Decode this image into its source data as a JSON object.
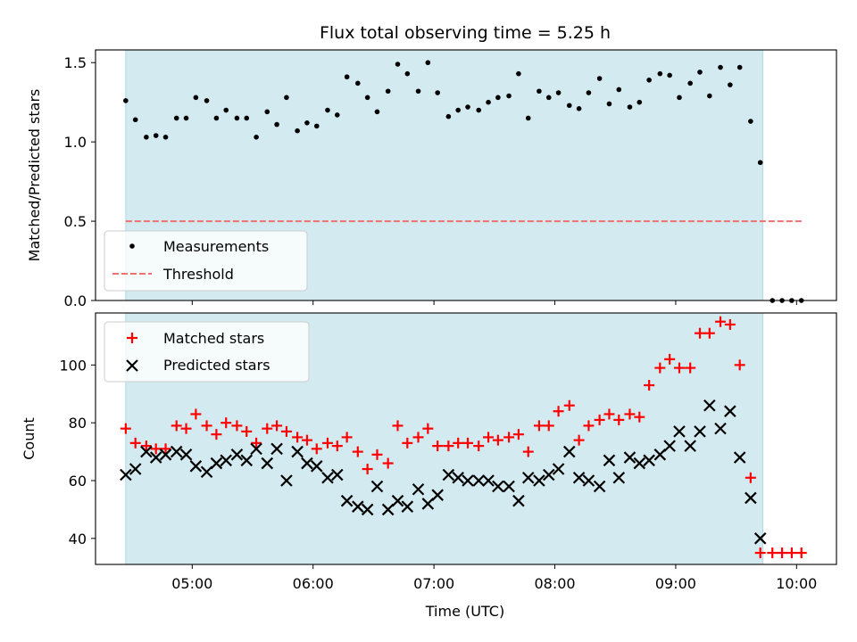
{
  "chart_data": [
    {
      "type": "scatter",
      "title": "Flux total observing time = 5.25 h",
      "xlabel": "",
      "ylabel": "Matched/Predicted stars",
      "ylim": [
        0,
        1.58
      ],
      "yticks": [
        "0.0",
        "0.5",
        "1.0",
        "1.5"
      ],
      "ytick_values": [
        0,
        0.5,
        1.0,
        1.5
      ],
      "observing_window_hours": [
        4.45,
        9.72
      ],
      "legend": {
        "position": "lower-left",
        "entries": [
          "Measurements",
          "Threshold"
        ]
      },
      "threshold": {
        "name": "Threshold",
        "value": 0.5,
        "x_range": [
          4.45,
          10.05
        ],
        "color": "#f07070"
      },
      "series": [
        {
          "name": "Measurements",
          "color": "#000000",
          "points": [
            [
              4.45,
              1.26
            ],
            [
              4.53,
              1.14
            ],
            [
              4.62,
              1.03
            ],
            [
              4.7,
              1.04
            ],
            [
              4.78,
              1.03
            ],
            [
              4.87,
              1.15
            ],
            [
              4.95,
              1.15
            ],
            [
              5.03,
              1.28
            ],
            [
              5.12,
              1.26
            ],
            [
              5.2,
              1.15
            ],
            [
              5.28,
              1.2
            ],
            [
              5.37,
              1.15
            ],
            [
              5.45,
              1.15
            ],
            [
              5.53,
              1.03
            ],
            [
              5.62,
              1.19
            ],
            [
              5.7,
              1.11
            ],
            [
              5.78,
              1.28
            ],
            [
              5.87,
              1.07
            ],
            [
              5.95,
              1.12
            ],
            [
              6.03,
              1.1
            ],
            [
              6.12,
              1.2
            ],
            [
              6.2,
              1.17
            ],
            [
              6.28,
              1.41
            ],
            [
              6.37,
              1.37
            ],
            [
              6.45,
              1.28
            ],
            [
              6.53,
              1.19
            ],
            [
              6.62,
              1.32
            ],
            [
              6.7,
              1.49
            ],
            [
              6.78,
              1.43
            ],
            [
              6.87,
              1.32
            ],
            [
              6.95,
              1.5
            ],
            [
              7.03,
              1.31
            ],
            [
              7.12,
              1.16
            ],
            [
              7.2,
              1.2
            ],
            [
              7.28,
              1.22
            ],
            [
              7.37,
              1.2
            ],
            [
              7.45,
              1.25
            ],
            [
              7.53,
              1.28
            ],
            [
              7.62,
              1.29
            ],
            [
              7.7,
              1.43
            ],
            [
              7.78,
              1.15
            ],
            [
              7.87,
              1.32
            ],
            [
              7.95,
              1.28
            ],
            [
              8.03,
              1.31
            ],
            [
              8.12,
              1.23
            ],
            [
              8.2,
              1.21
            ],
            [
              8.28,
              1.31
            ],
            [
              8.37,
              1.4
            ],
            [
              8.45,
              1.24
            ],
            [
              8.53,
              1.33
            ],
            [
              8.62,
              1.22
            ],
            [
              8.7,
              1.25
            ],
            [
              8.78,
              1.39
            ],
            [
              8.87,
              1.43
            ],
            [
              8.95,
              1.42
            ],
            [
              9.03,
              1.28
            ],
            [
              9.12,
              1.37
            ],
            [
              9.2,
              1.44
            ],
            [
              9.28,
              1.29
            ],
            [
              9.37,
              1.47
            ],
            [
              9.45,
              1.36
            ],
            [
              9.53,
              1.47
            ],
            [
              9.62,
              1.13
            ],
            [
              9.7,
              0.87
            ],
            [
              9.8,
              0.0
            ],
            [
              9.88,
              0.0
            ],
            [
              9.96,
              0.0
            ],
            [
              10.04,
              0.0
            ]
          ]
        }
      ]
    },
    {
      "type": "scatter",
      "title": "",
      "xlabel": "Time (UTC)",
      "ylabel": "Count",
      "ylim": [
        31,
        118
      ],
      "xlim": [
        4.2,
        10.33
      ],
      "yticks": [
        "40",
        "60",
        "80",
        "100"
      ],
      "ytick_values": [
        40,
        60,
        80,
        100
      ],
      "xticks": [
        "05:00",
        "06:00",
        "07:00",
        "08:00",
        "09:00",
        "10:00"
      ],
      "xtick_values": [
        5,
        6,
        7,
        8,
        9,
        10
      ],
      "observing_window_hours": [
        4.45,
        9.72
      ],
      "legend": {
        "position": "top-left",
        "entries": [
          "Matched stars",
          "Predicted stars"
        ]
      },
      "series": [
        {
          "name": "Matched stars",
          "marker": "plus",
          "color": "#ff0000",
          "points": [
            [
              4.45,
              78
            ],
            [
              4.53,
              73
            ],
            [
              4.62,
              72
            ],
            [
              4.7,
              71
            ],
            [
              4.78,
              71
            ],
            [
              4.87,
              79
            ],
            [
              4.95,
              78
            ],
            [
              5.03,
              83
            ],
            [
              5.12,
              79
            ],
            [
              5.2,
              76
            ],
            [
              5.28,
              80
            ],
            [
              5.37,
              79
            ],
            [
              5.45,
              77
            ],
            [
              5.53,
              73
            ],
            [
              5.62,
              78
            ],
            [
              5.7,
              79
            ],
            [
              5.78,
              77
            ],
            [
              5.87,
              75
            ],
            [
              5.95,
              74
            ],
            [
              6.03,
              71
            ],
            [
              6.12,
              73
            ],
            [
              6.2,
              72
            ],
            [
              6.28,
              75
            ],
            [
              6.37,
              70
            ],
            [
              6.45,
              64
            ],
            [
              6.53,
              69
            ],
            [
              6.62,
              66
            ],
            [
              6.7,
              79
            ],
            [
              6.78,
              73
            ],
            [
              6.87,
              75
            ],
            [
              6.95,
              78
            ],
            [
              7.03,
              72
            ],
            [
              7.12,
              72
            ],
            [
              7.2,
              73
            ],
            [
              7.28,
              73
            ],
            [
              7.37,
              72
            ],
            [
              7.45,
              75
            ],
            [
              7.53,
              74
            ],
            [
              7.62,
              75
            ],
            [
              7.7,
              76
            ],
            [
              7.78,
              70
            ],
            [
              7.87,
              79
            ],
            [
              7.95,
              79
            ],
            [
              8.03,
              84
            ],
            [
              8.12,
              86
            ],
            [
              8.2,
              74
            ],
            [
              8.28,
              79
            ],
            [
              8.37,
              81
            ],
            [
              8.45,
              83
            ],
            [
              8.53,
              81
            ],
            [
              8.62,
              83
            ],
            [
              8.7,
              82
            ],
            [
              8.78,
              93
            ],
            [
              8.87,
              99
            ],
            [
              8.95,
              102
            ],
            [
              9.03,
              99
            ],
            [
              9.12,
              99
            ],
            [
              9.2,
              111
            ],
            [
              9.28,
              111
            ],
            [
              9.37,
              115
            ],
            [
              9.45,
              114
            ],
            [
              9.53,
              100
            ],
            [
              9.62,
              61
            ],
            [
              9.7,
              35
            ],
            [
              9.8,
              35
            ],
            [
              9.88,
              35
            ],
            [
              9.96,
              35
            ],
            [
              10.04,
              35
            ]
          ]
        },
        {
          "name": "Predicted stars",
          "marker": "x",
          "color": "#000000",
          "points": [
            [
              4.45,
              62
            ],
            [
              4.53,
              64
            ],
            [
              4.62,
              70
            ],
            [
              4.7,
              68
            ],
            [
              4.78,
              69
            ],
            [
              4.87,
              70
            ],
            [
              4.95,
              69
            ],
            [
              5.03,
              65
            ],
            [
              5.12,
              63
            ],
            [
              5.2,
              66
            ],
            [
              5.28,
              67
            ],
            [
              5.37,
              69
            ],
            [
              5.45,
              67
            ],
            [
              5.53,
              71
            ],
            [
              5.62,
              66
            ],
            [
              5.7,
              71
            ],
            [
              5.78,
              60
            ],
            [
              5.87,
              70
            ],
            [
              5.95,
              66
            ],
            [
              6.03,
              65
            ],
            [
              6.12,
              61
            ],
            [
              6.2,
              62
            ],
            [
              6.28,
              53
            ],
            [
              6.37,
              51
            ],
            [
              6.45,
              50
            ],
            [
              6.53,
              58
            ],
            [
              6.62,
              50
            ],
            [
              6.7,
              53
            ],
            [
              6.78,
              51
            ],
            [
              6.87,
              57
            ],
            [
              6.95,
              52
            ],
            [
              7.03,
              55
            ],
            [
              7.12,
              62
            ],
            [
              7.2,
              61
            ],
            [
              7.28,
              60
            ],
            [
              7.37,
              60
            ],
            [
              7.45,
              60
            ],
            [
              7.53,
              58
            ],
            [
              7.62,
              58
            ],
            [
              7.7,
              53
            ],
            [
              7.78,
              61
            ],
            [
              7.87,
              60
            ],
            [
              7.95,
              62
            ],
            [
              8.03,
              64
            ],
            [
              8.12,
              70
            ],
            [
              8.2,
              61
            ],
            [
              8.28,
              60
            ],
            [
              8.37,
              58
            ],
            [
              8.45,
              67
            ],
            [
              8.53,
              61
            ],
            [
              8.62,
              68
            ],
            [
              8.7,
              66
            ],
            [
              8.78,
              67
            ],
            [
              8.87,
              69
            ],
            [
              8.95,
              72
            ],
            [
              9.03,
              77
            ],
            [
              9.12,
              72
            ],
            [
              9.2,
              77
            ],
            [
              9.28,
              86
            ],
            [
              9.37,
              78
            ],
            [
              9.45,
              84
            ],
            [
              9.53,
              68
            ],
            [
              9.62,
              54
            ],
            [
              9.7,
              40
            ]
          ]
        }
      ]
    }
  ],
  "colors": {
    "observing_band": "#d3ebf0",
    "band_edge": "#add8e6",
    "legend_border": "#cccccc"
  }
}
